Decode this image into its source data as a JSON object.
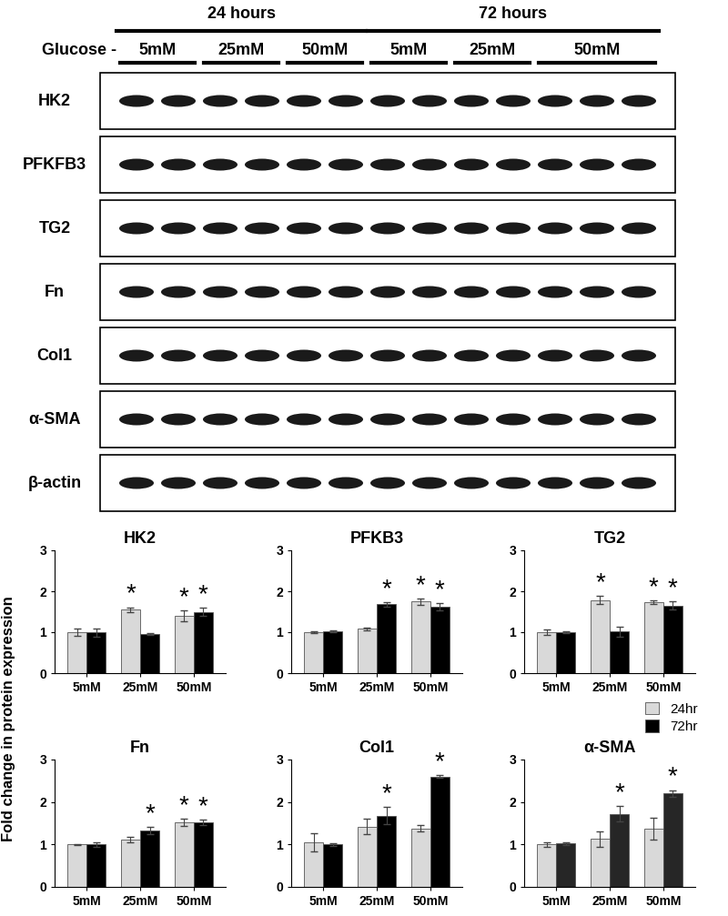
{
  "blot": {
    "treatment_label": "Glucose -",
    "time_groups": [
      {
        "label": "24 hours",
        "conditions": [
          {
            "label": "5mM",
            "lanes": 2
          },
          {
            "label": "25mM",
            "lanes": 2
          },
          {
            "label": "50mM",
            "lanes": 2
          }
        ]
      },
      {
        "label": "72 hours",
        "conditions": [
          {
            "label": "5mM",
            "lanes": 2
          },
          {
            "label": "25mM",
            "lanes": 2
          },
          {
            "label": "50mM",
            "lanes": 3
          }
        ]
      }
    ],
    "rows": [
      "HK2",
      "PFKFB3",
      "TG2",
      "Fn",
      "Col1",
      "α-SMA",
      "β-actin"
    ]
  },
  "y_label": "Fold change in protein expression",
  "chart_data": [
    {
      "type": "bar",
      "title": "HK2",
      "categories": [
        "5mM",
        "25mM",
        "50mM"
      ],
      "ylim": [
        0,
        3
      ],
      "yticks": [
        0,
        1,
        2,
        3
      ],
      "series": [
        {
          "name": "24hr",
          "color": "#d9d9d9",
          "values": [
            1.0,
            1.55,
            1.4
          ],
          "errors": [
            0.08,
            0.06,
            0.13
          ],
          "annotations": [
            null,
            "*",
            "*"
          ]
        },
        {
          "name": "72hr",
          "color": "#000000",
          "values": [
            1.0,
            0.95,
            1.5
          ],
          "errors": [
            0.1,
            0.02,
            0.1
          ],
          "annotations": [
            null,
            null,
            "*"
          ]
        }
      ]
    },
    {
      "type": "bar",
      "title": "PFKB3",
      "categories": [
        "5mM",
        "25mM",
        "50mM"
      ],
      "ylim": [
        0,
        3
      ],
      "yticks": [
        0,
        1,
        2,
        3
      ],
      "series": [
        {
          "name": "24hr",
          "color": "#d9d9d9",
          "values": [
            1.0,
            1.08,
            1.75
          ],
          "errors": [
            0.02,
            0.04,
            0.08
          ],
          "annotations": [
            null,
            null,
            "*"
          ]
        },
        {
          "name": "72hr",
          "color": "#000000",
          "values": [
            1.02,
            1.68,
            1.62
          ],
          "errors": [
            0.03,
            0.06,
            0.09
          ],
          "annotations": [
            null,
            "*",
            "*"
          ]
        }
      ]
    },
    {
      "type": "bar",
      "title": "TG2",
      "categories": [
        "5mM",
        "25mM",
        "50mM"
      ],
      "ylim": [
        0,
        3
      ],
      "yticks": [
        0,
        1,
        2,
        3
      ],
      "legend": "upper right",
      "series": [
        {
          "name": "24hr",
          "color": "#d9d9d9",
          "values": [
            1.0,
            1.78,
            1.73
          ],
          "errors": [
            0.06,
            0.1,
            0.05
          ],
          "annotations": [
            null,
            "*",
            "*"
          ]
        },
        {
          "name": "72hr",
          "color": "#000000",
          "values": [
            1.0,
            1.02,
            1.65
          ],
          "errors": [
            0.02,
            0.12,
            0.1
          ],
          "annotations": [
            null,
            null,
            "*"
          ]
        }
      ]
    },
    {
      "type": "bar",
      "title": "Fn",
      "categories": [
        "5mM",
        "25mM",
        "50mM"
      ],
      "ylim": [
        0,
        3
      ],
      "yticks": [
        0,
        1,
        2,
        3
      ],
      "series": [
        {
          "name": "24hr",
          "color": "#d9d9d9",
          "values": [
            1.0,
            1.12,
            1.52
          ],
          "errors": [
            0.01,
            0.06,
            0.08
          ],
          "annotations": [
            null,
            null,
            "*"
          ]
        },
        {
          "name": "72hr",
          "color": "#000000",
          "values": [
            1.0,
            1.33,
            1.52
          ],
          "errors": [
            0.05,
            0.08,
            0.07
          ],
          "annotations": [
            null,
            "*",
            "*"
          ]
        }
      ]
    },
    {
      "type": "bar",
      "title": "Col1",
      "categories": [
        "5mM",
        "25mM",
        "50mM"
      ],
      "ylim": [
        0,
        3
      ],
      "yticks": [
        0,
        1,
        2,
        3
      ],
      "series": [
        {
          "name": "24hr",
          "color": "#d9d9d9",
          "values": [
            1.05,
            1.42,
            1.38
          ],
          "errors": [
            0.22,
            0.18,
            0.08
          ],
          "annotations": [
            null,
            null,
            null
          ]
        },
        {
          "name": "72hr",
          "color": "#000000",
          "values": [
            1.0,
            1.68,
            2.6
          ],
          "errors": [
            0.03,
            0.2,
            0.03
          ],
          "annotations": [
            null,
            "*",
            "*"
          ]
        }
      ]
    },
    {
      "type": "bar",
      "title": "α-SMA",
      "categories": [
        "5mM",
        "25mM",
        "50mM"
      ],
      "ylim": [
        0,
        3
      ],
      "yticks": [
        0,
        1,
        2,
        3
      ],
      "series": [
        {
          "name": "24hr",
          "color": "#d9d9d9",
          "values": [
            1.0,
            1.13,
            1.37
          ],
          "errors": [
            0.06,
            0.18,
            0.25
          ],
          "annotations": [
            null,
            null,
            null
          ]
        },
        {
          "name": "72hr",
          "color": "#262626",
          "values": [
            1.02,
            1.72,
            2.2
          ],
          "errors": [
            0.03,
            0.18,
            0.08
          ],
          "annotations": [
            null,
            "*",
            "*"
          ]
        }
      ]
    }
  ]
}
